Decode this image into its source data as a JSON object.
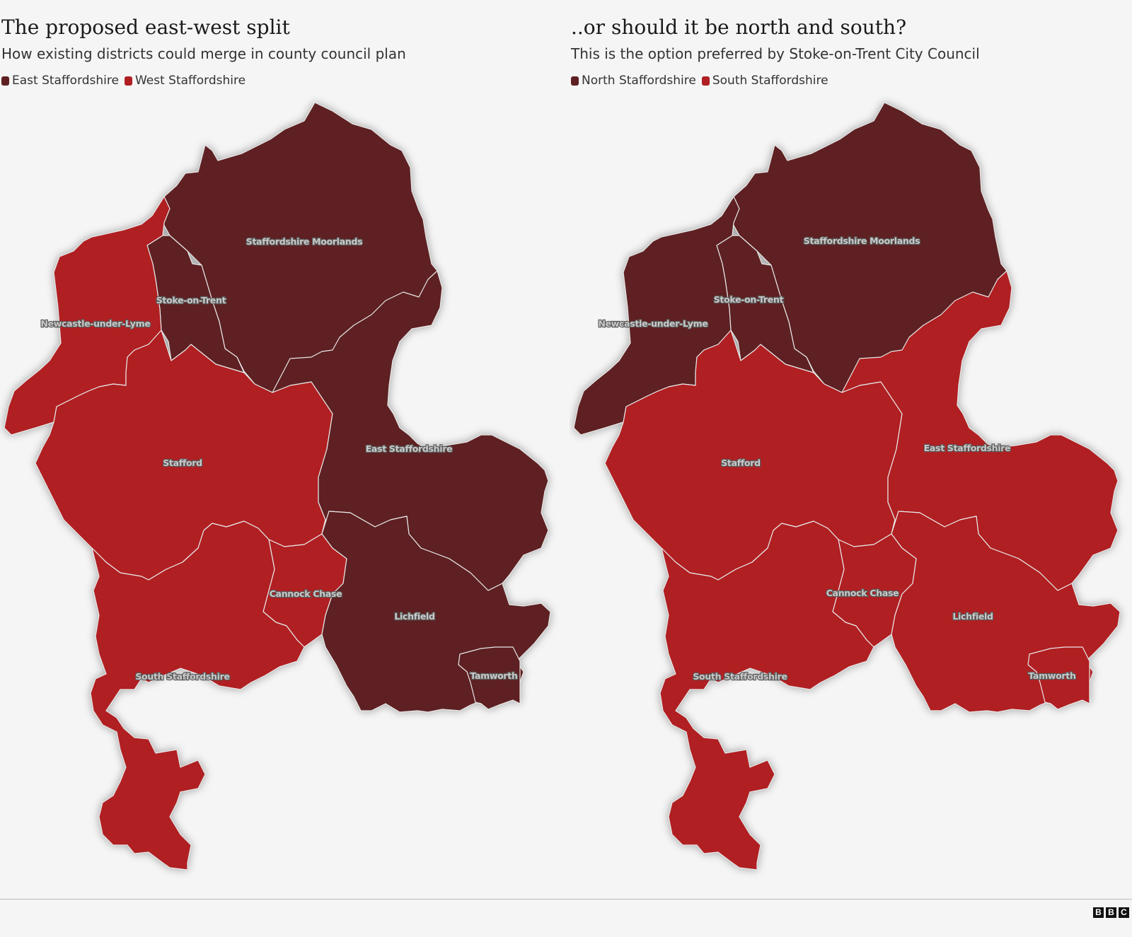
{
  "colors": {
    "dark_region": "#5e2022",
    "red_region": "#b01f22",
    "border": "#e8e8e8"
  },
  "maps": [
    {
      "title": "The proposed east-west split",
      "subtitle": "How existing districts could merge in county council plan",
      "legend": [
        {
          "label": "East Staffordshire",
          "color": "#5e2022"
        },
        {
          "label": "West Staffordshire",
          "color": "#b01f22"
        }
      ],
      "districts": {
        "staffordshire_moorlands": {
          "label": "Staffordshire Moorlands",
          "group": "East Staffordshire"
        },
        "stoke_on_trent": {
          "label": "Stoke-on-Trent",
          "group": "East Staffordshire"
        },
        "newcastle_under_lyme": {
          "label": "Newcastle-under-Lyme",
          "group": "West Staffordshire"
        },
        "stafford": {
          "label": "Stafford",
          "group": "West Staffordshire"
        },
        "east_staffordshire": {
          "label": "East Staffordshire",
          "group": "East Staffordshire"
        },
        "cannock_chase": {
          "label": "Cannock Chase",
          "group": "West Staffordshire"
        },
        "lichfield": {
          "label": "Lichfield",
          "group": "East Staffordshire"
        },
        "south_staffordshire": {
          "label": "South Staffordshire",
          "group": "West Staffordshire"
        },
        "tamworth": {
          "label": "Tamworth",
          "group": "East Staffordshire"
        }
      }
    },
    {
      "title": "..or should it be north and south?",
      "subtitle": "This is the option preferred by Stoke-on-Trent City Council",
      "legend": [
        {
          "label": "North Staffordshire",
          "color": "#5e2022"
        },
        {
          "label": "South Staffordshire",
          "color": "#b01f22"
        }
      ],
      "districts": {
        "staffordshire_moorlands": {
          "label": "Staffordshire Moorlands",
          "group": "North Staffordshire"
        },
        "stoke_on_trent": {
          "label": "Stoke-on-Trent",
          "group": "North Staffordshire"
        },
        "newcastle_under_lyme": {
          "label": "Newcastle-under-Lyme",
          "group": "North Staffordshire"
        },
        "stafford": {
          "label": "Stafford",
          "group": "South Staffordshire"
        },
        "east_staffordshire": {
          "label": "East Staffordshire",
          "group": "South Staffordshire"
        },
        "cannock_chase": {
          "label": "Cannock Chase",
          "group": "South Staffordshire"
        },
        "lichfield": {
          "label": "Lichfield",
          "group": "South Staffordshire"
        },
        "south_staffordshire": {
          "label": "South Staffordshire",
          "group": "South Staffordshire"
        },
        "tamworth": {
          "label": "Tamworth",
          "group": "South Staffordshire"
        }
      }
    }
  ],
  "footer": {
    "logo": [
      "B",
      "B",
      "C"
    ]
  }
}
